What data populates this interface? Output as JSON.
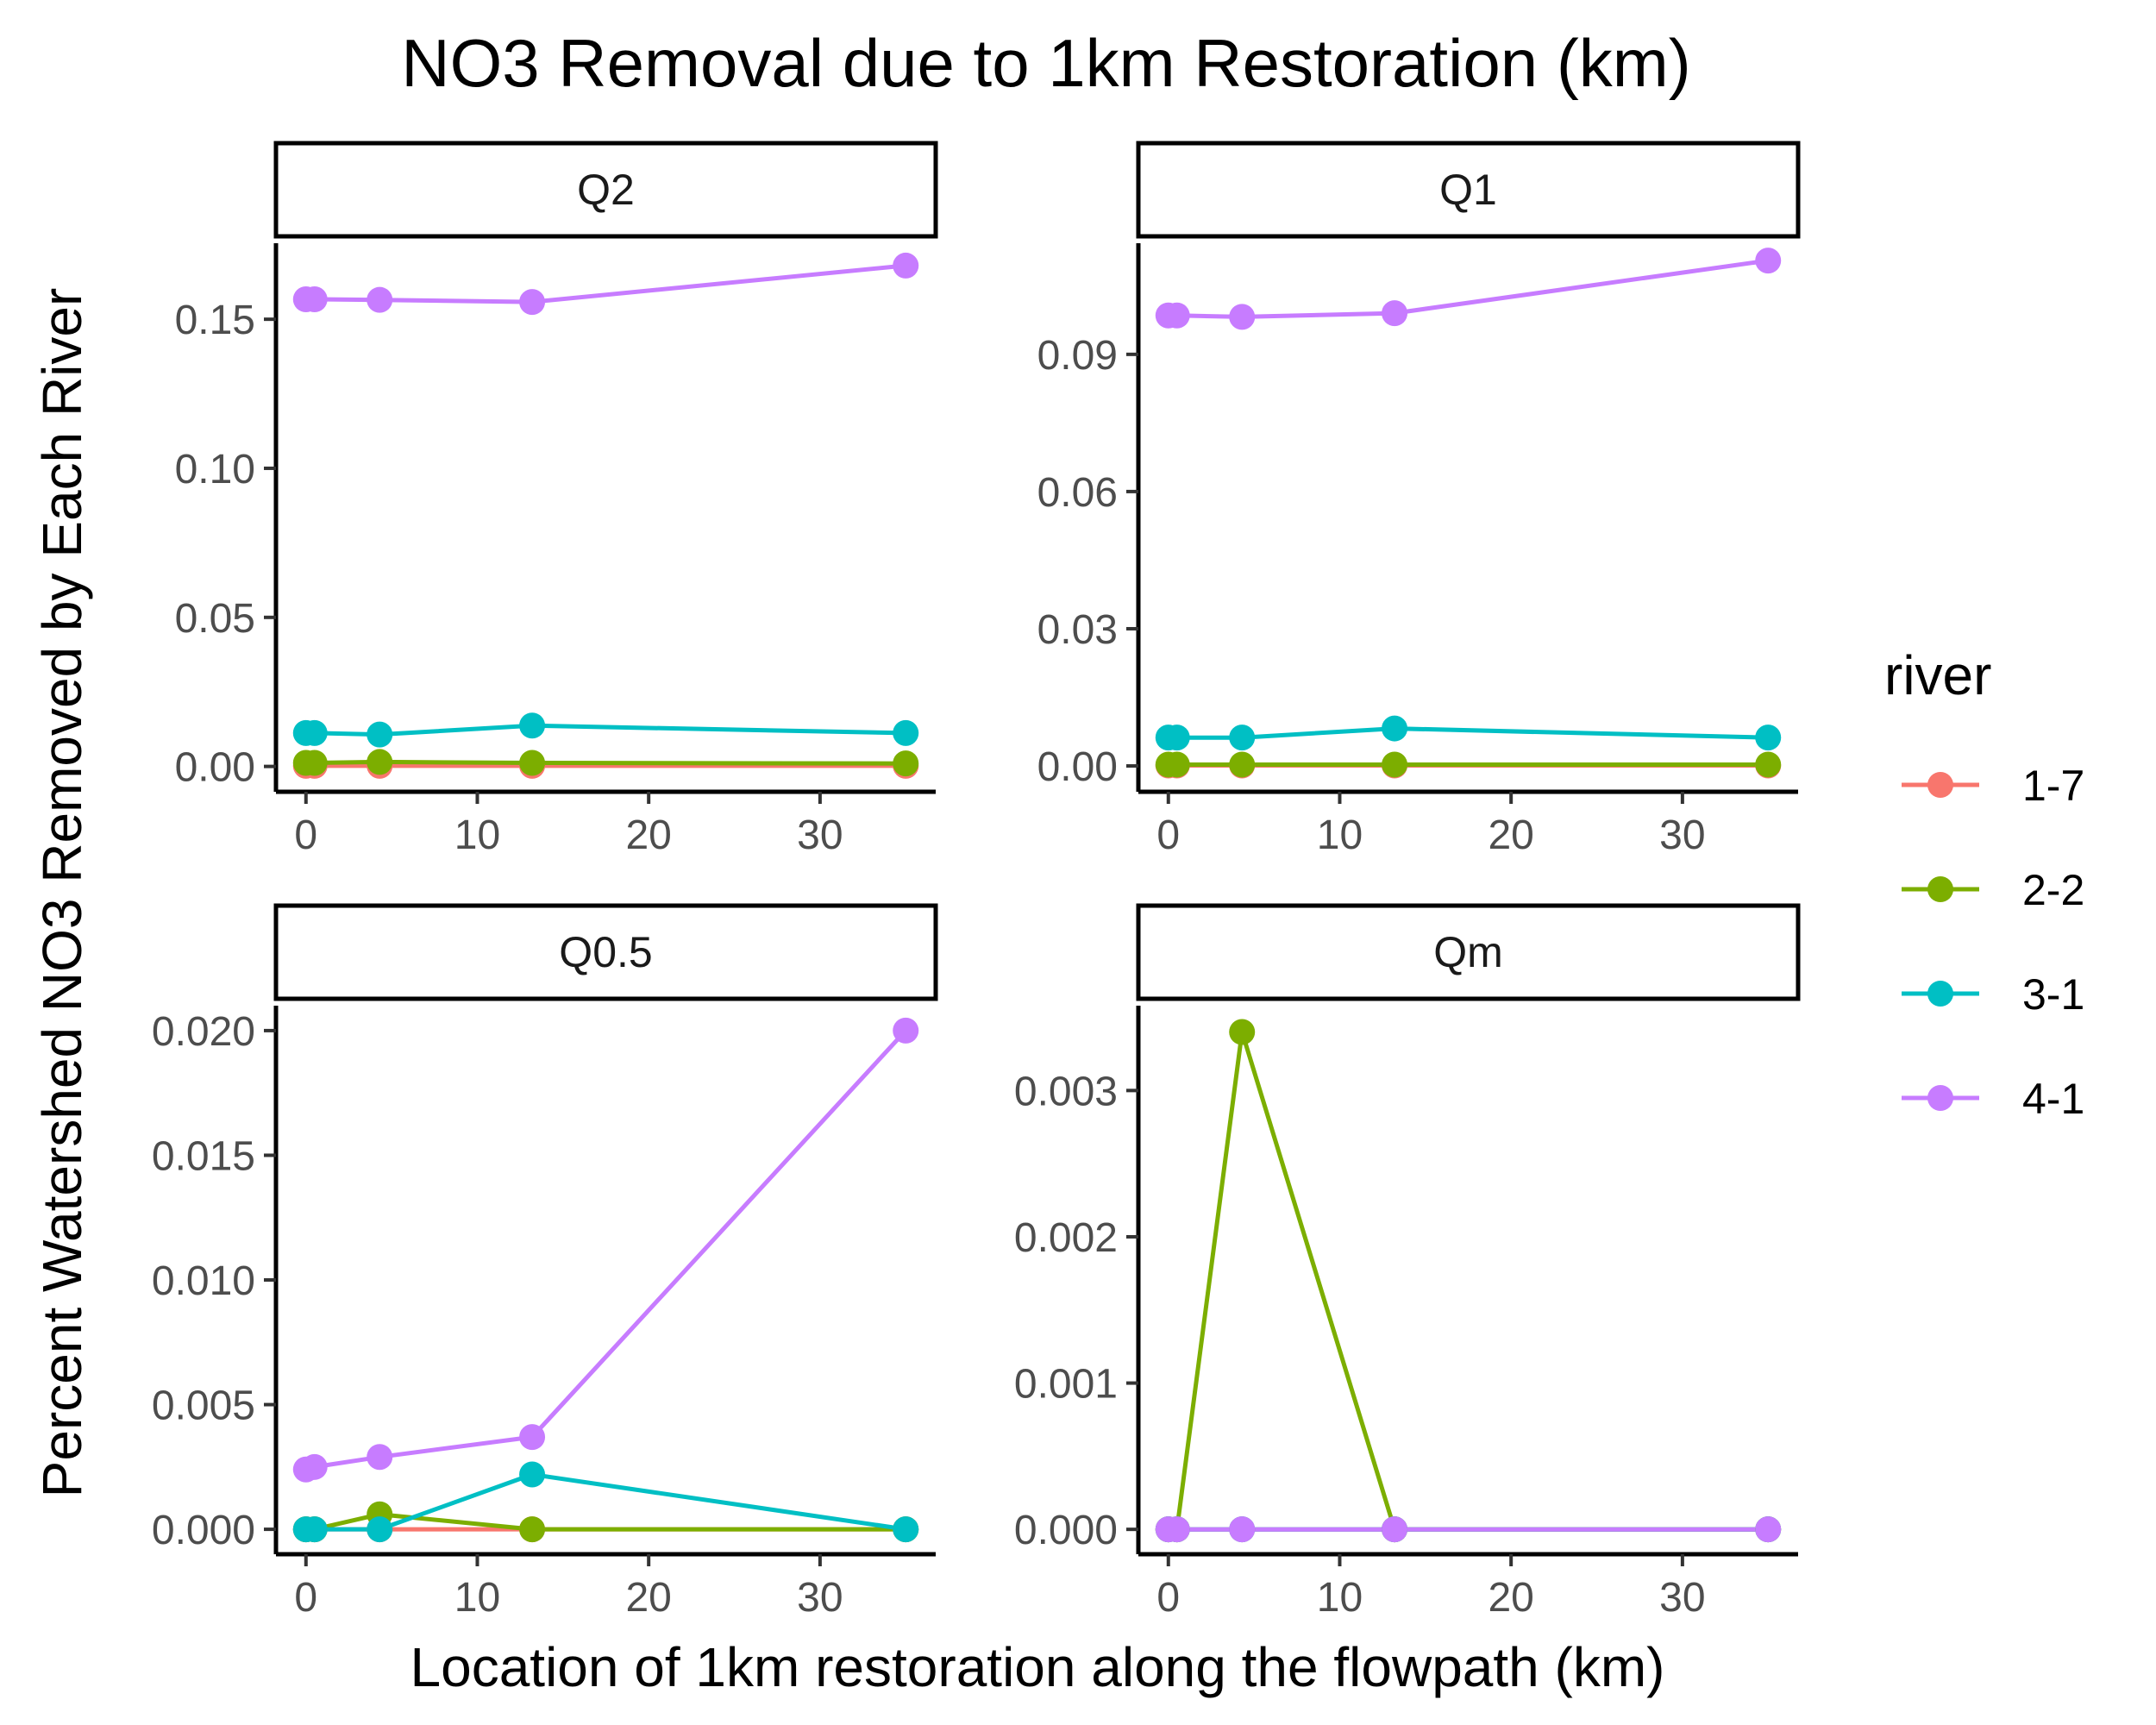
{
  "chart_data": {
    "type": "line",
    "title": "NO3 Removal due to 1km Restoration (km)",
    "xlabel": "Location of 1km restoration along the flowpath (km)",
    "ylabel": "Percent Watershed NO3 Removed by Each River",
    "legend": {
      "title": "river",
      "placement": "right",
      "entries": [
        {
          "name": "1-7",
          "color": "#F8766D"
        },
        {
          "name": "2-2",
          "color": "#7CAE00"
        },
        {
          "name": "3-1",
          "color": "#00BFC4"
        },
        {
          "name": "4-1",
          "color": "#C77CFF"
        }
      ]
    },
    "x": [
      0,
      0.5,
      4.3,
      13.2,
      35
    ],
    "xlim": [
      -1.75,
      36.75
    ],
    "xticks": [
      0,
      10,
      20,
      30
    ],
    "xtick_labels": [
      "0",
      "10",
      "20",
      "30"
    ],
    "grid": false,
    "panels": [
      {
        "label": "Q2",
        "ylim": [
          -0.0085,
          0.1755
        ],
        "yticks": [
          0,
          0.05,
          0.1,
          0.15
        ],
        "ytick_labels": [
          "0.00",
          "0.05",
          "0.10",
          "0.15"
        ],
        "series": [
          {
            "name": "1-7",
            "values": [
              0.0002,
              0.0002,
              0.0002,
              0.0002,
              0.0002
            ]
          },
          {
            "name": "2-2",
            "values": [
              0.0012,
              0.0012,
              0.0015,
              0.0012,
              0.001
            ]
          },
          {
            "name": "3-1",
            "values": [
              0.0112,
              0.0112,
              0.0107,
              0.0137,
              0.0112
            ]
          },
          {
            "name": "4-1",
            "values": [
              0.1567,
              0.1567,
              0.1565,
              0.1558,
              0.168
            ]
          }
        ]
      },
      {
        "label": "Q1",
        "ylim": [
          -0.00565,
          0.1143
        ],
        "yticks": [
          0,
          0.03,
          0.06,
          0.09
        ],
        "ytick_labels": [
          "0.00",
          "0.03",
          "0.06",
          "0.09"
        ],
        "series": [
          {
            "name": "1-7",
            "values": [
              0.0001,
              0.0001,
              0.0001,
              0.0001,
              0.0001
            ]
          },
          {
            "name": "2-2",
            "values": [
              0.0003,
              0.0003,
              0.0003,
              0.0003,
              0.0003
            ]
          },
          {
            "name": "3-1",
            "values": [
              0.0062,
              0.0062,
              0.0062,
              0.0082,
              0.0062
            ]
          },
          {
            "name": "4-1",
            "values": [
              0.0985,
              0.0985,
              0.0982,
              0.099,
              0.1105
            ]
          }
        ]
      },
      {
        "label": "Q0.5",
        "ylim": [
          -0.001,
          0.021
        ],
        "yticks": [
          0,
          0.005,
          0.01,
          0.015,
          0.02
        ],
        "ytick_labels": [
          "0.000",
          "0.005",
          "0.010",
          "0.015",
          "0.020"
        ],
        "series": [
          {
            "name": "1-7",
            "values": [
              0,
              0,
              0,
              0,
              0
            ]
          },
          {
            "name": "2-2",
            "values": [
              0,
              0,
              0.0006,
              0,
              0
            ]
          },
          {
            "name": "3-1",
            "values": [
              0,
              0,
              0,
              0.0022,
              0
            ]
          },
          {
            "name": "4-1",
            "values": [
              0.0024,
              0.0025,
              0.0029,
              0.0037,
              0.02
            ]
          }
        ]
      },
      {
        "label": "Qm",
        "ylim": [
          -0.00017,
          0.00358
        ],
        "yticks": [
          0,
          0.001,
          0.002,
          0.003
        ],
        "ytick_labels": [
          "0.000",
          "0.001",
          "0.002",
          "0.003"
        ],
        "series": [
          {
            "name": "1-7",
            "values": [
              0,
              0,
              0,
              0,
              0
            ]
          },
          {
            "name": "2-2",
            "values": [
              0,
              0,
              0.0034,
              0,
              0
            ]
          },
          {
            "name": "3-1",
            "values": [
              0,
              0,
              0,
              0,
              0
            ]
          },
          {
            "name": "4-1",
            "values": [
              0,
              0,
              0,
              0,
              0
            ]
          }
        ]
      }
    ]
  }
}
